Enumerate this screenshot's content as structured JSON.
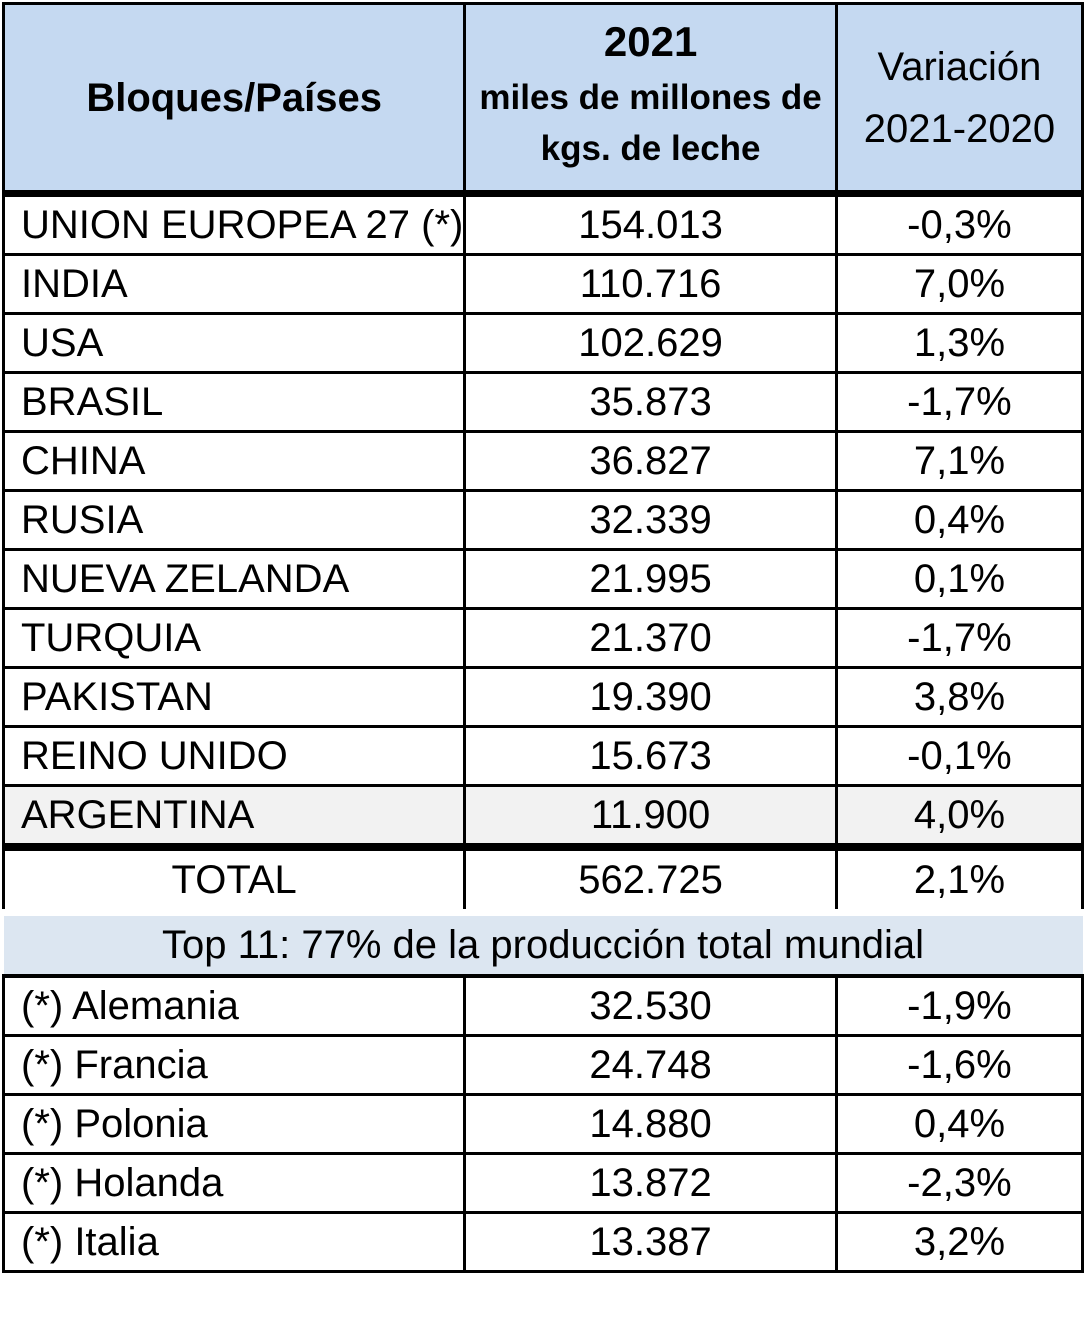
{
  "header": {
    "col1": "Bloques/Países",
    "col2_year": "2021",
    "col2_unit_line1": "miles de millones de",
    "col2_unit_line2": "kgs. de leche",
    "col3_line1": "Variación",
    "col3_line2": "2021-2020"
  },
  "rows": [
    {
      "name": "UNION EUROPEA 27 (*)",
      "value": "154.013",
      "variation": "-0,3%"
    },
    {
      "name": "INDIA",
      "value": "110.716",
      "variation": "7,0%"
    },
    {
      "name": "USA",
      "value": "102.629",
      "variation": "1,3%"
    },
    {
      "name": "BRASIL",
      "value": "35.873",
      "variation": "-1,7%"
    },
    {
      "name": "CHINA",
      "value": "36.827",
      "variation": "7,1%"
    },
    {
      "name": "RUSIA",
      "value": "32.339",
      "variation": "0,4%"
    },
    {
      "name": "NUEVA ZELANDA",
      "value": "21.995",
      "variation": "0,1%"
    },
    {
      "name": "TURQUIA",
      "value": "21.370",
      "variation": "-1,7%"
    },
    {
      "name": "PAKISTAN",
      "value": "19.390",
      "variation": "3,8%"
    },
    {
      "name": "REINO UNIDO",
      "value": "15.673",
      "variation": "-0,1%"
    },
    {
      "name": "ARGENTINA",
      "value": "11.900",
      "variation": "4,0%"
    }
  ],
  "total": {
    "name": "TOTAL",
    "value": "562.725",
    "variation": "2,1%"
  },
  "note": "Top 11: 77% de la producción total mundial",
  "eu_rows": [
    {
      "name": "(*) Alemania",
      "value": "32.530",
      "variation": "-1,9%"
    },
    {
      "name": "(*) Francia",
      "value": "24.748",
      "variation": "-1,6%"
    },
    {
      "name": "(*) Polonia",
      "value": "14.880",
      "variation": "0,4%"
    },
    {
      "name": "(*) Holanda",
      "value": "13.872",
      "variation": "-2,3%"
    },
    {
      "name": "(*) Italia",
      "value": "13.387",
      "variation": "3,2%"
    }
  ]
}
